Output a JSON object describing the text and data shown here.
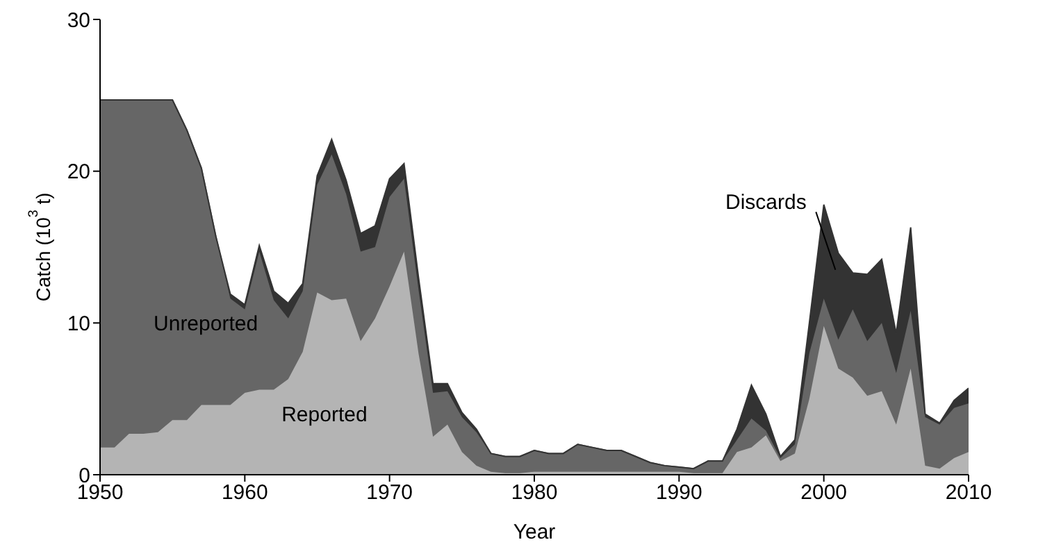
{
  "chart_data": {
    "type": "area",
    "stacked": true,
    "xlabel": "Year",
    "ylabel": "Catch (10$^{3}$ t)",
    "x": [
      1950,
      1951,
      1952,
      1953,
      1954,
      1955,
      1956,
      1957,
      1958,
      1959,
      1960,
      1961,
      1962,
      1963,
      1964,
      1965,
      1966,
      1967,
      1968,
      1969,
      1970,
      1971,
      1972,
      1973,
      1974,
      1975,
      1976,
      1977,
      1978,
      1979,
      1980,
      1981,
      1982,
      1983,
      1984,
      1985,
      1986,
      1987,
      1988,
      1989,
      1990,
      1991,
      1992,
      1993,
      1994,
      1995,
      1996,
      1997,
      1998,
      1999,
      2000,
      2001,
      2002,
      2003,
      2004,
      2005,
      2006,
      2007,
      2008,
      2009,
      2010
    ],
    "series": [
      {
        "name": "Reported",
        "color": "#b4b4b4",
        "values": [
          1.8,
          1.8,
          2.7,
          2.7,
          2.8,
          3.6,
          3.6,
          4.6,
          4.6,
          4.6,
          5.4,
          5.6,
          5.6,
          6.3,
          8.1,
          12.0,
          11.5,
          11.6,
          8.8,
          10.3,
          12.4,
          14.7,
          8.0,
          2.5,
          3.3,
          1.5,
          0.6,
          0.2,
          0.1,
          0.1,
          0.2,
          0.2,
          0.2,
          0.2,
          0.2,
          0.2,
          0.2,
          0.2,
          0.2,
          0.2,
          0.2,
          0.1,
          0.1,
          0.1,
          1.5,
          1.8,
          2.6,
          0.9,
          1.4,
          5.0,
          9.8,
          7.0,
          6.4,
          5.2,
          5.5,
          3.3,
          7.0,
          0.6,
          0.4,
          1.1,
          1.5
        ]
      },
      {
        "name": "Unreported",
        "color": "#666666",
        "values": [
          22.9,
          22.9,
          22.0,
          22.0,
          21.9,
          21.1,
          19.1,
          15.6,
          11.1,
          7.0,
          5.5,
          9.1,
          5.9,
          4.0,
          4.0,
          7.1,
          9.6,
          6.9,
          5.9,
          4.7,
          5.9,
          4.8,
          4.2,
          2.9,
          2.2,
          2.3,
          2.2,
          1.2,
          1.1,
          1.1,
          1.4,
          1.2,
          1.2,
          1.8,
          1.6,
          1.4,
          1.4,
          1.0,
          0.6,
          0.4,
          0.3,
          0.3,
          0.8,
          0.8,
          0.8,
          1.9,
          0.3,
          0.2,
          0.6,
          3.0,
          1.8,
          1.9,
          4.5,
          3.6,
          4.5,
          3.4,
          3.8,
          3.2,
          2.9,
          3.3,
          3.2
        ]
      },
      {
        "name": "Discards",
        "color": "#333333",
        "values": [
          0,
          0,
          0,
          0,
          0,
          0,
          0,
          0,
          0,
          0.3,
          0.3,
          0.4,
          0.6,
          1.0,
          0.5,
          0.6,
          1.0,
          0.9,
          1.2,
          1.4,
          1.2,
          1.0,
          0.8,
          0.6,
          0.5,
          0.3,
          0.2,
          0,
          0,
          0,
          0,
          0,
          0,
          0,
          0,
          0,
          0,
          0,
          0,
          0,
          0,
          0,
          0,
          0,
          0.7,
          2.2,
          1.1,
          0.1,
          0.3,
          2.0,
          6.2,
          5.7,
          2.4,
          4.4,
          4.2,
          2.6,
          5.5,
          0.2,
          0.1,
          0.5,
          1.0
        ]
      }
    ],
    "xlim": [
      1950,
      2010
    ],
    "xticks": [
      1950,
      1960,
      1970,
      1980,
      1990,
      2000,
      2010
    ],
    "ylim": [
      0,
      30
    ],
    "yticks": [
      0,
      10,
      20,
      30
    ],
    "grid": false,
    "legend": false
  }
}
